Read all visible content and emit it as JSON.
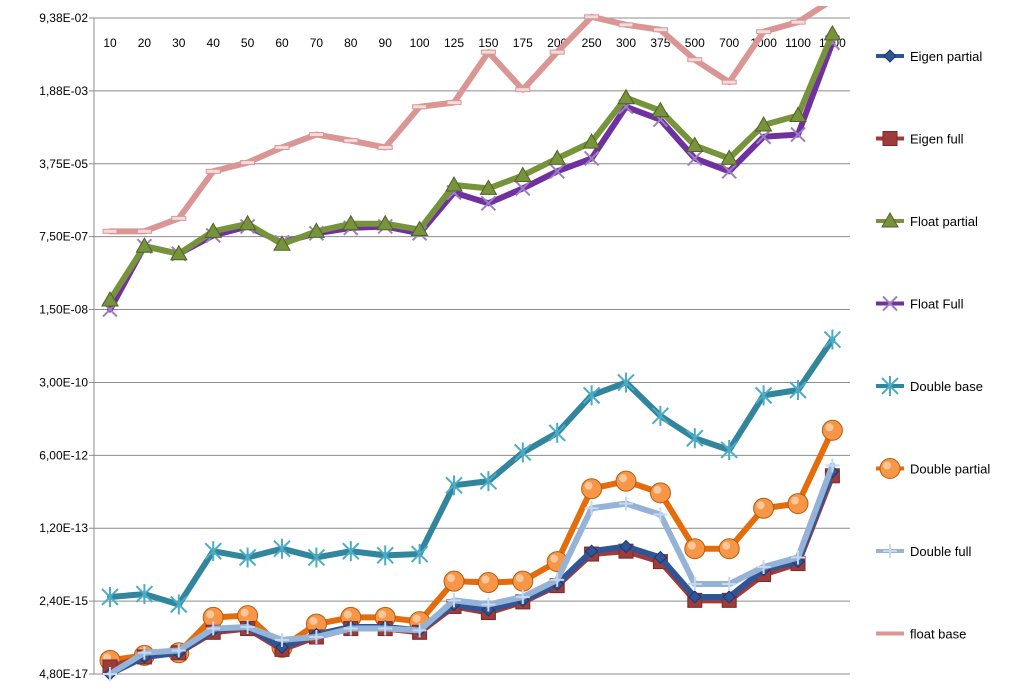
{
  "chart_data": {
    "type": "line",
    "scale": "log",
    "y_ticks": [
      "9,38E-02",
      "1,88E-03",
      "3,75E-05",
      "7,50E-07",
      "1,50E-08",
      "3,00E-10",
      "6,00E-12",
      "1,20E-13",
      "2,40E-15",
      "4,80E-17"
    ],
    "ylim": [
      "4,80E-17",
      "9,38E-02"
    ],
    "categories": [
      "10",
      "20",
      "30",
      "40",
      "50",
      "60",
      "70",
      "80",
      "90",
      "100",
      "125",
      "150",
      "175",
      "200",
      "250",
      "300",
      "375",
      "500",
      "700",
      "1000",
      "1100",
      "1200"
    ],
    "grid": "horizontal",
    "legend_position": "right",
    "series": [
      {
        "name": "Eigen partial",
        "color": "#2F5597",
        "marker": "diamond",
        "values": [
          "4.8e-17",
          "1.2e-16",
          "1.5e-16",
          "5.0e-16",
          "6.0e-16",
          "2.0e-16",
          "4.0e-16",
          "6.0e-16",
          "6.0e-16",
          "5.0e-16",
          "2.0e-15",
          "1.5e-15",
          "2.5e-15",
          "6.0e-15",
          "3.5e-14",
          "4.5e-14",
          "2.5e-14",
          "3.0e-15",
          "3.0e-15",
          "1.3e-14",
          "2.0e-14",
          "2.5e-12"
        ]
      },
      {
        "name": "Eigen full",
        "color": "#9E3B3B",
        "marker": "square",
        "values": [
          "7.0e-17",
          "1.2e-16",
          "1.5e-16",
          "4.5e-16",
          "5.5e-16",
          "1.8e-16",
          "3.5e-16",
          "5.5e-16",
          "5.5e-16",
          "4.5e-16",
          "1.8e-15",
          "1.3e-15",
          "2.3e-15",
          "5.5e-15",
          "3.0e-14",
          "3.5e-14",
          "2.0e-14",
          "2.5e-15",
          "2.5e-15",
          "1.0e-14",
          "1.8e-14",
          "2.0e-12"
        ]
      },
      {
        "name": "Float partial",
        "color": "#77933C",
        "marker": "triangle",
        "values": [
          "2.5e-08",
          "4.5e-07",
          "3.0e-07",
          "1.0e-06",
          "1.5e-06",
          "5.0e-07",
          "1.0e-06",
          "1.5e-06",
          "1.5e-06",
          "1.1e-06",
          "1.2e-05",
          "1.0e-05",
          "2.0e-05",
          "5.0e-05",
          "1.2e-04",
          "1.3e-03",
          "6.5e-04",
          "1.0e-04",
          "5.0e-05",
          "3.0e-04",
          "5.0e-04",
          "4.0e-02"
        ]
      },
      {
        "name": "Float Full",
        "color": "#7030A0",
        "marker": "x",
        "values": [
          "1.5e-08",
          "4.5e-07",
          "3.0e-07",
          "8.0e-07",
          "1.3e-06",
          "5.5e-07",
          "9.0e-07",
          "1.2e-06",
          "1.3e-06",
          "9.0e-07",
          "8.0e-06",
          "4.5e-06",
          "1.0e-05",
          "2.5e-05",
          "5.0e-05",
          "8.0e-04",
          "4.0e-04",
          "5.0e-05",
          "2.5e-05",
          "1.6e-04",
          "1.8e-04",
          "2.5e-02"
        ]
      },
      {
        "name": "Double base",
        "color": "#31859C",
        "marker": "star",
        "values": [
          "3.0e-15",
          "3.5e-15",
          "2.0e-15",
          "3.5e-14",
          "2.5e-14",
          "4.0e-14",
          "2.5e-14",
          "3.5e-14",
          "2.8e-14",
          "3.0e-14",
          "1.2e-12",
          "1.5e-12",
          "7.0e-12",
          "2.0e-11",
          "1.5e-10",
          "3.0e-10",
          "5.0e-11",
          "1.5e-11",
          "8.0e-12",
          "1.5e-10",
          "2.0e-10",
          "3.0e-09"
        ]
      },
      {
        "name": "Double partial",
        "color": "#E46C0A",
        "marker": "circle",
        "values": [
          "1.0e-16",
          "1.3e-16",
          "1.5e-16",
          "1.0e-15",
          "1.1e-15",
          "2.0e-16",
          "7.0e-16",
          "1.0e-15",
          "1.0e-15",
          "8.0e-16",
          "7.0e-15",
          "6.5e-15",
          "7.0e-15",
          "2.0e-14",
          "1.0e-12",
          "1.5e-12",
          "8.0e-13",
          "4.0e-14",
          "4.0e-14",
          "3.5e-13",
          "4.5e-13",
          "2.3e-11"
        ]
      },
      {
        "name": "Double full",
        "color": "#95B3D7",
        "marker": "plus",
        "values": [
          "4.8e-17",
          "1.5e-16",
          "1.7e-16",
          "5.5e-16",
          "6.0e-16",
          "3.0e-16",
          "3.5e-16",
          "5.5e-16",
          "5.5e-16",
          "5.0e-16",
          "2.5e-15",
          "2.0e-15",
          "3.0e-15",
          "7.5e-15",
          "3.5e-13",
          "4.5e-13",
          "2.5e-13",
          "6.0e-15",
          "6.0e-15",
          "1.5e-14",
          "2.5e-14",
          "3.5e-12"
        ]
      },
      {
        "name": "float base",
        "color": "#D99694",
        "marker": "dash",
        "values": [
          "1.0e-06",
          "1.0e-06",
          "2.0e-06",
          "2.5e-05",
          "4.0e-05",
          "9.0e-05",
          "1.8e-04",
          "1.3e-04",
          "9.0e-05",
          "8.0e-04",
          "1.0e-03",
          "1.5e-02",
          "2.0e-03",
          "1.5e-02",
          "1.0e-01",
          "6.5e-02",
          "5.0e-02",
          "1.0e-02",
          "3.0e-03",
          "4.5e-02",
          "7.5e-02",
          "2.5e-01"
        ]
      }
    ]
  }
}
